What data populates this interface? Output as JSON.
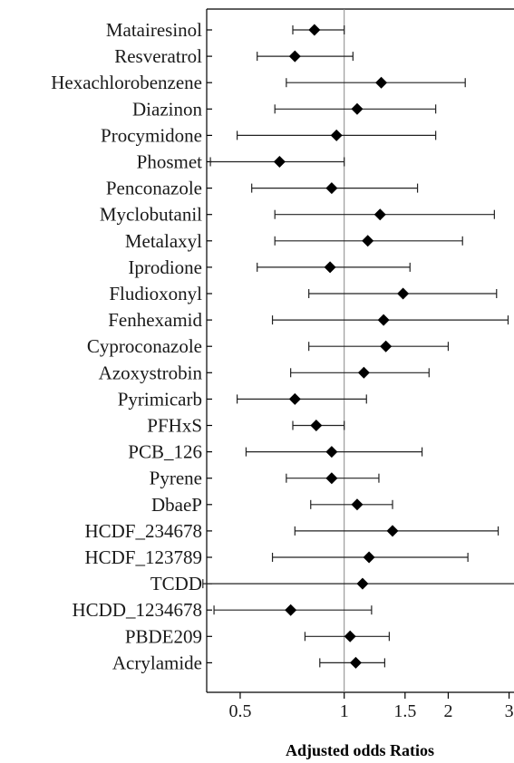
{
  "chart_data": {
    "type": "scatter",
    "subtype": "forest-plot",
    "title": "",
    "xlabel": "Adjusted odds Ratios",
    "ylabel": "",
    "x_scale": "log",
    "xlim": [
      0.4,
      3.1
    ],
    "reference_line": 1,
    "x_ticks": [
      {
        "value": 0.5,
        "label": "0.5"
      },
      {
        "value": 1,
        "label": "1"
      },
      {
        "value": 1.5,
        "label": "1.5"
      },
      {
        "value": 2,
        "label": "2"
      },
      {
        "value": 3,
        "label": "3"
      }
    ],
    "grid": false,
    "legend": "none",
    "marker_color": "#000000",
    "line_color": "#222222",
    "reference_color": "#888888",
    "categories": [
      "Matairesinol",
      "Resveratrol",
      "Hexachlorobenzene",
      "Diazinon",
      "Procymidone",
      "Phosmet",
      "Penconazole",
      "Myclobutanil",
      "Metalaxyl",
      "Iprodione",
      "Fludioxonyl",
      "Fenhexamid",
      "Cyproconazole",
      "Azoxystrobin",
      "Pyrimicarb",
      "PFHxS",
      "PCB_126",
      "Pyrene",
      "DbaeP",
      "HCDF_234678",
      "HCDF_123789",
      "TCDD",
      "HCDD_1234678",
      "PBDE209",
      "Acrylamide"
    ],
    "series": [
      {
        "estimate": [
          0.82,
          0.72,
          1.28,
          1.09,
          0.95,
          0.65,
          0.92,
          1.27,
          1.17,
          0.91,
          1.48,
          1.3,
          1.32,
          1.14,
          0.72,
          0.83,
          0.92,
          0.92,
          1.09,
          1.38,
          1.18,
          1.13,
          0.7,
          1.04,
          1.08
        ],
        "lower": [
          0.71,
          0.56,
          0.68,
          0.63,
          0.49,
          0.41,
          0.54,
          0.63,
          0.63,
          0.56,
          0.79,
          0.62,
          0.79,
          0.7,
          0.49,
          0.71,
          0.52,
          0.68,
          0.8,
          0.72,
          0.62,
          0.39,
          0.42,
          0.77,
          0.85
        ],
        "upper": [
          1.0,
          1.06,
          2.24,
          1.84,
          1.84,
          1.0,
          1.63,
          2.72,
          2.2,
          1.55,
          2.76,
          2.98,
          2.0,
          1.76,
          1.16,
          1.0,
          1.68,
          1.26,
          1.38,
          2.79,
          2.28,
          3.37,
          1.2,
          1.35,
          1.31
        ]
      }
    ]
  }
}
